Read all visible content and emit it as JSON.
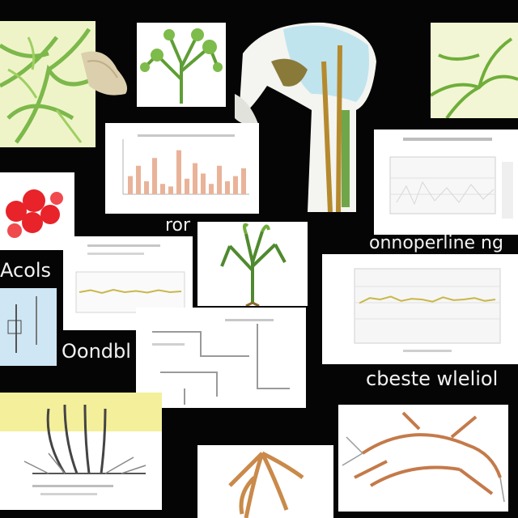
{
  "captions": {
    "c1": "ror",
    "c2": "onnoperline ng",
    "c3": "Acols",
    "c4": "Oondbl",
    "c5": "cbeste wleliol"
  },
  "colors": {
    "background": "#050505",
    "plant_green": "#6fae3a",
    "leaf_pale": "#e8f2c4",
    "bar_salmon": "#e9b39a",
    "line_olive": "#c9b74a",
    "root_tan": "#c98a4a",
    "red_cells": "#e8232a"
  },
  "tiles": {
    "small_chart": {
      "title": "",
      "bars": [
        0.35,
        0.55,
        0.25,
        0.7,
        0.2,
        0.15,
        0.85,
        0.3,
        0.6,
        0.4,
        0.2,
        0.55,
        0.25,
        0.35,
        0.5
      ]
    },
    "wide_chart": {
      "line": [
        0.55,
        0.62,
        0.6,
        0.64,
        0.58,
        0.61,
        0.6,
        0.57,
        0.63,
        0.59,
        0.6,
        0.62,
        0.58,
        0.6
      ]
    },
    "mid_chart": {
      "line": [
        0.5,
        0.55,
        0.48,
        0.56,
        0.5,
        0.53,
        0.49,
        0.55,
        0.5,
        0.52
      ]
    }
  }
}
